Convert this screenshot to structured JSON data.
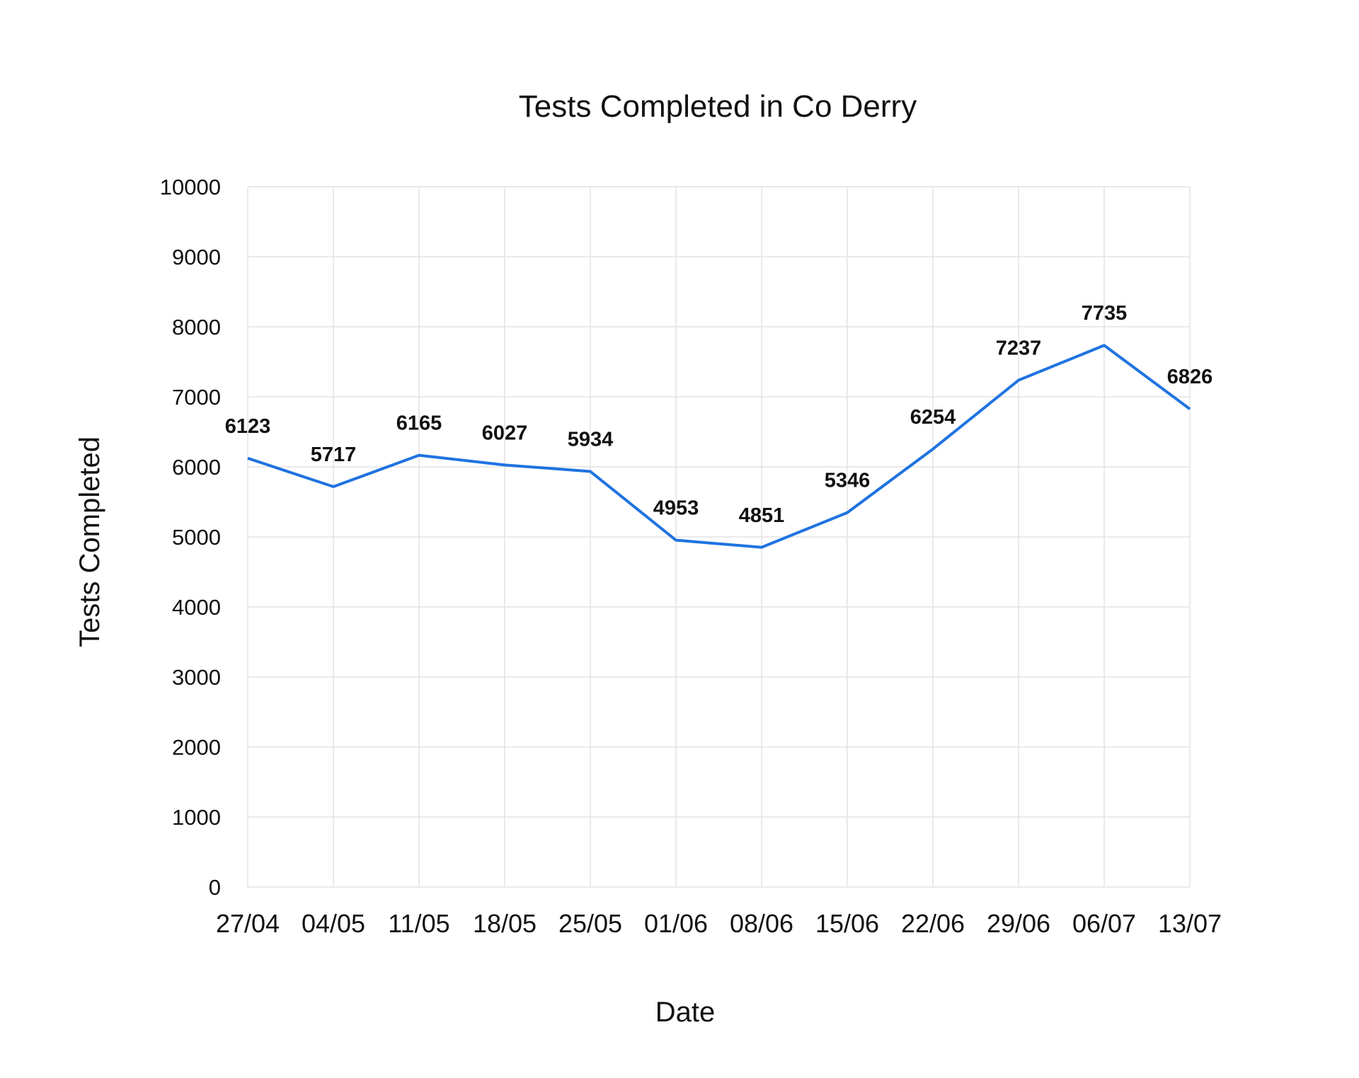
{
  "chart_data": {
    "type": "line",
    "title": "Tests Completed in Co Derry",
    "xlabel": "Date",
    "ylabel": "Tests Completed",
    "categories": [
      "27/04",
      "04/05",
      "11/05",
      "18/05",
      "25/05",
      "01/06",
      "08/06",
      "15/06",
      "22/06",
      "29/06",
      "06/07",
      "13/07"
    ],
    "series": [
      {
        "values": [
          6123,
          5717,
          6165,
          6027,
          5934,
          4953,
          4851,
          5346,
          6254,
          7237,
          7735,
          6826
        ],
        "color": "#1f73e0"
      }
    ],
    "ylim": [
      0,
      10000
    ],
    "yticks": [
      0,
      1000,
      2000,
      3000,
      4000,
      5000,
      6000,
      7000,
      8000,
      9000,
      10000
    ],
    "grid": true,
    "data_labels": true,
    "legend": "none"
  }
}
